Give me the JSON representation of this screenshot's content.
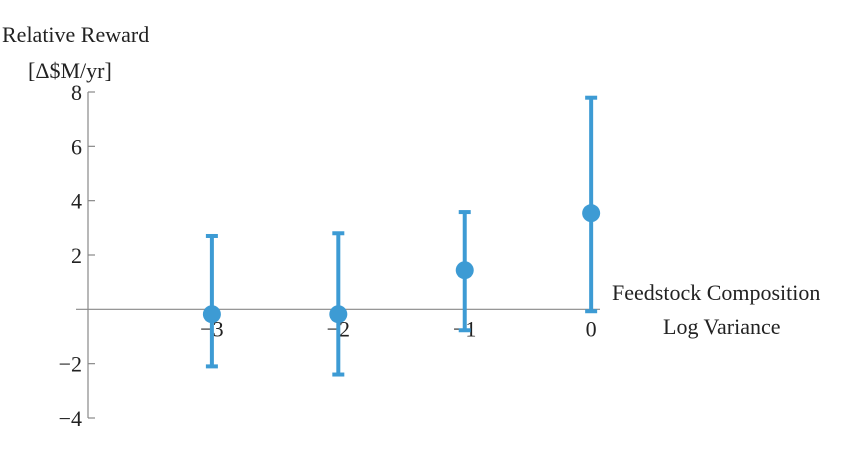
{
  "chart_data": {
    "type": "errorbar",
    "y_label": [
      "Relative Reward",
      "[Δ$M/yr]"
    ],
    "x_label": [
      "Feedstock Composition",
      "Log Variance"
    ],
    "x": [
      -3,
      -2,
      -1,
      0
    ],
    "series": [
      {
        "color": "#3d9bd4",
        "values": [
          -0.18,
          -0.18,
          1.44,
          3.54
        ],
        "lower": [
          -2.1,
          -2.4,
          -0.77,
          -0.07
        ],
        "upper": [
          2.7,
          2.8,
          3.58,
          7.79
        ]
      }
    ],
    "xlim": [
      -3.98,
      0.07
    ],
    "ylim": [
      -4,
      8
    ],
    "xticks": [
      {
        "value": -3,
        "label": "−3"
      },
      {
        "value": -2,
        "label": "−2"
      },
      {
        "value": -1,
        "label": "−1"
      },
      0
    ],
    "yticks": [
      {
        "value": -4,
        "label": "−4"
      },
      {
        "value": -2,
        "label": "−2"
      },
      2,
      4,
      6,
      8
    ]
  }
}
